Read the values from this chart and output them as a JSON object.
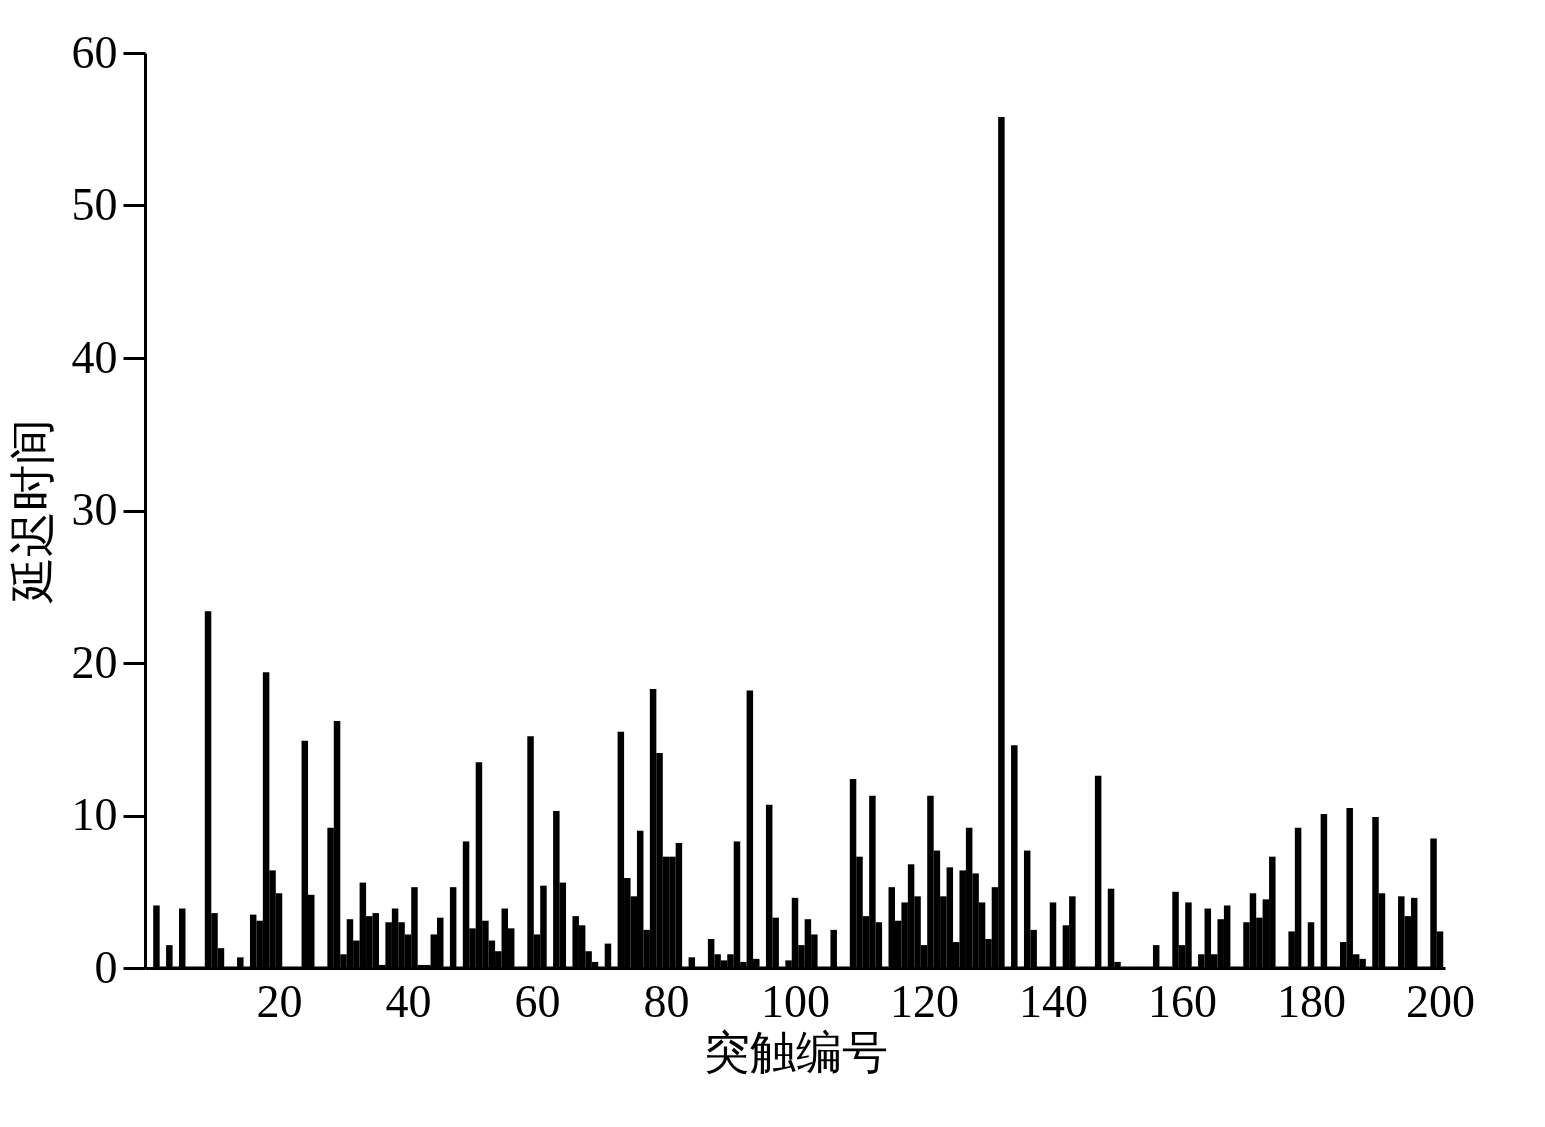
{
  "chart_data": {
    "type": "bar",
    "xlabel": "突触编号",
    "ylabel": "延迟时间",
    "x": [
      1,
      2,
      3,
      4,
      5,
      6,
      7,
      8,
      9,
      10,
      11,
      12,
      13,
      14,
      15,
      16,
      17,
      18,
      19,
      20,
      21,
      22,
      23,
      24,
      25,
      26,
      27,
      28,
      29,
      30,
      31,
      32,
      33,
      34,
      35,
      36,
      37,
      38,
      39,
      40,
      41,
      42,
      43,
      44,
      45,
      46,
      47,
      48,
      49,
      50,
      51,
      52,
      53,
      54,
      55,
      56,
      57,
      58,
      59,
      60,
      61,
      62,
      63,
      64,
      65,
      66,
      67,
      68,
      69,
      70,
      71,
      72,
      73,
      74,
      75,
      76,
      77,
      78,
      79,
      80,
      81,
      82,
      83,
      84,
      85,
      86,
      87,
      88,
      89,
      90,
      91,
      92,
      93,
      94,
      95,
      96,
      97,
      98,
      99,
      100,
      101,
      102,
      103,
      104,
      105,
      106,
      107,
      108,
      109,
      110,
      111,
      112,
      113,
      114,
      115,
      116,
      117,
      118,
      119,
      120,
      121,
      122,
      123,
      124,
      125,
      126,
      127,
      128,
      129,
      130,
      131,
      132,
      133,
      134,
      135,
      136,
      137,
      138,
      139,
      140,
      141,
      142,
      143,
      144,
      145,
      146,
      147,
      148,
      149,
      150,
      151,
      152,
      153,
      154,
      155,
      156,
      157,
      158,
      159,
      160,
      161,
      162,
      163,
      164,
      165,
      166,
      167,
      168,
      169,
      170,
      171,
      172,
      173,
      174,
      175,
      176,
      177,
      178,
      179,
      180,
      181,
      182,
      183,
      184,
      185,
      186,
      187,
      188,
      189,
      190,
      191,
      192,
      193,
      194,
      195,
      196,
      197,
      198,
      199,
      200
    ],
    "values": [
      4.1,
      0.1,
      1.5,
      0.1,
      3.9,
      0.1,
      0.1,
      0.1,
      23.4,
      3.6,
      1.3,
      0.1,
      0.1,
      0.7,
      0.1,
      3.5,
      3.1,
      19.4,
      6.4,
      4.9,
      0.1,
      0.1,
      0.1,
      14.9,
      4.8,
      0.1,
      0.1,
      9.2,
      16.2,
      0.9,
      3.2,
      1.8,
      5.6,
      3.4,
      3.6,
      0.2,
      3.0,
      3.9,
      3.0,
      2.2,
      5.3,
      0.2,
      0.2,
      2.2,
      3.3,
      0.1,
      5.3,
      0.1,
      8.3,
      2.6,
      13.5,
      3.1,
      1.8,
      1.1,
      3.9,
      2.6,
      0.1,
      0.1,
      15.2,
      2.2,
      5.4,
      0.1,
      10.3,
      5.6,
      0.1,
      3.4,
      2.8,
      1.1,
      0.4,
      0.1,
      1.6,
      0.1,
      15.5,
      5.9,
      4.7,
      9.0,
      2.5,
      18.3,
      14.1,
      7.3,
      7.3,
      8.2,
      0.1,
      0.7,
      0.1,
      0.1,
      1.9,
      0.9,
      0.5,
      0.9,
      8.3,
      0.4,
      18.2,
      0.6,
      0.1,
      10.7,
      3.3,
      0.1,
      0.5,
      4.6,
      1.5,
      3.2,
      2.2,
      0.1,
      0.1,
      2.5,
      0.1,
      0.1,
      12.4,
      7.3,
      3.4,
      11.3,
      3.0,
      0.1,
      5.3,
      3.1,
      4.3,
      6.8,
      4.7,
      1.5,
      11.3,
      7.7,
      4.7,
      6.6,
      1.7,
      6.4,
      9.2,
      6.2,
      4.3,
      1.9,
      5.3,
      55.8,
      0.1,
      14.6,
      0.1,
      7.7,
      2.5,
      0.1,
      0.1,
      4.3,
      0.1,
      2.8,
      4.7,
      0.1,
      0.1,
      0.1,
      12.6,
      0.1,
      5.2,
      0.4,
      0.1,
      0.1,
      0.1,
      0.1,
      0.1,
      1.5,
      0.1,
      0.1,
      5.0,
      1.5,
      4.3,
      0.1,
      0.9,
      3.9,
      0.9,
      3.2,
      4.1,
      0.1,
      0.1,
      3.0,
      4.9,
      3.3,
      4.5,
      7.3,
      0.1,
      0.1,
      2.4,
      9.2,
      0.1,
      3.0,
      0.1,
      10.1,
      0.1,
      0.1,
      1.7,
      10.5,
      0.9,
      0.6,
      0.1,
      9.9,
      4.9,
      0.1,
      0.1,
      4.7,
      3.4,
      4.6,
      0.1,
      0.1,
      8.5,
      2.4
    ],
    "color": "#000000",
    "xlim": [
      0,
      200
    ],
    "xticks": [
      20,
      40,
      60,
      80,
      100,
      120,
      140,
      160,
      180,
      200
    ],
    "ylim": [
      0,
      60
    ],
    "yticks": [
      0,
      10,
      20,
      30,
      40,
      50,
      60
    ],
    "grid": false
  }
}
